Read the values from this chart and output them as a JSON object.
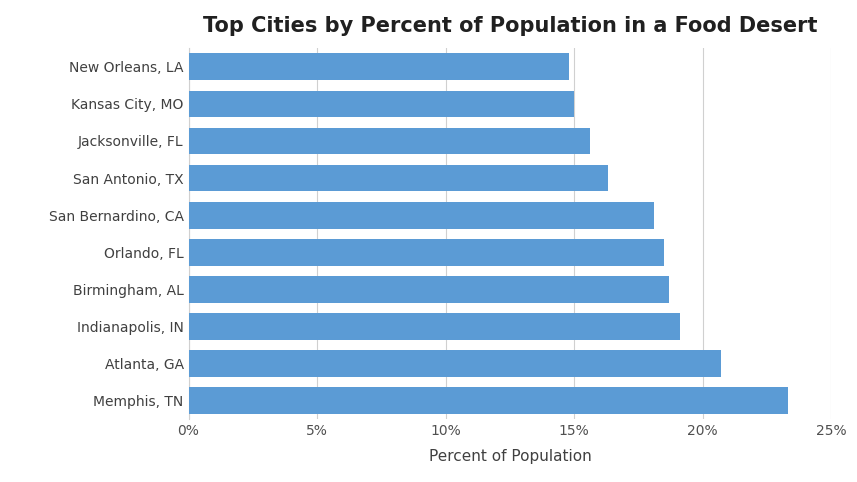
{
  "title": "Top Cities by Percent of Population in a Food Desert",
  "xlabel": "Percent of Population",
  "categories": [
    "Memphis, TN",
    "Atlanta, GA",
    "Indianapolis, IN",
    "Birmingham, AL",
    "Orlando, FL",
    "San Bernardino, CA",
    "San Antonio, TX",
    "Jacksonville, FL",
    "Kansas City, MO",
    "New Orleans, LA"
  ],
  "values": [
    0.233,
    0.207,
    0.191,
    0.187,
    0.185,
    0.181,
    0.163,
    0.156,
    0.15,
    0.148
  ],
  "bar_color": "#5B9BD5",
  "xlim": [
    0,
    0.25
  ],
  "xticks": [
    0.0,
    0.05,
    0.1,
    0.15,
    0.2,
    0.25
  ],
  "tick_labels": [
    "0%",
    "5%",
    "10%",
    "15%",
    "20%",
    "25%"
  ],
  "background_color": "#FFFFFF",
  "title_fontsize": 15,
  "label_fontsize": 11,
  "tick_fontsize": 10,
  "ytick_fontsize": 10,
  "grid_color": "#D0D0D0",
  "grid_linestyle": "-",
  "bar_height": 0.72
}
